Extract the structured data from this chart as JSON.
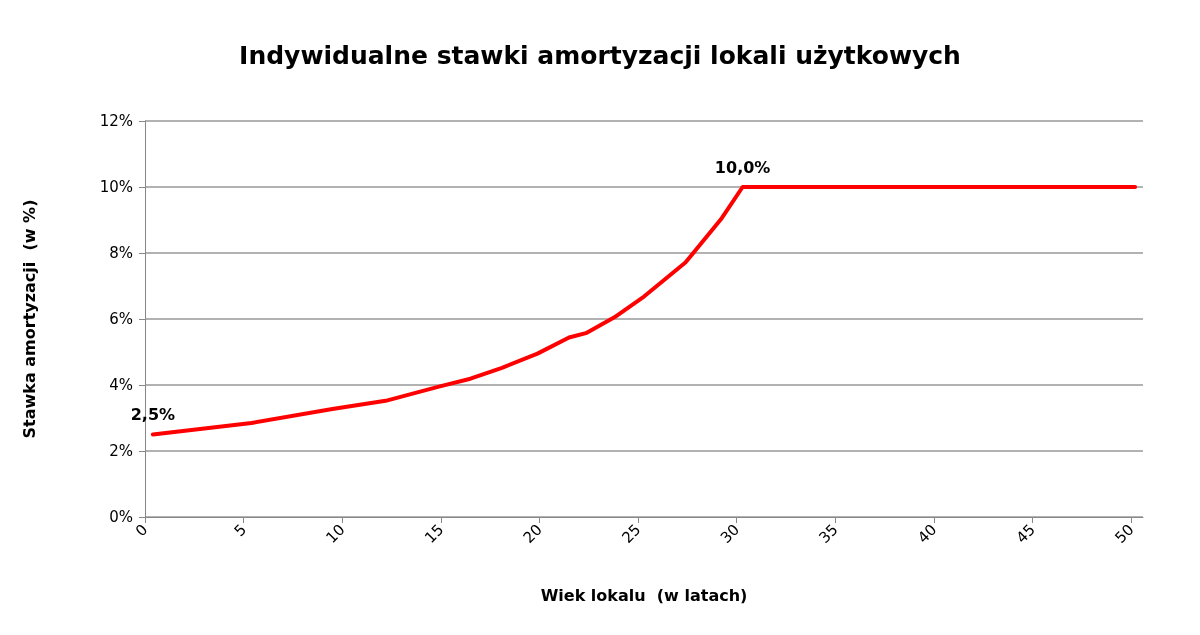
{
  "chart_data": {
    "type": "line",
    "title": "Indywidualne stawki amortyzacji lokali użytkowych",
    "xlabel": "Wiek lokalu  (w latach)",
    "ylabel": "Stawka amortyzacji  (w %)",
    "x": [
      0.4,
      5.4,
      9.5,
      12.2,
      14.9,
      16.5,
      18.1,
      19.9,
      21.5,
      22.4,
      23.8,
      25.3,
      27.4,
      29.2,
      30.3,
      50.2
    ],
    "series": [
      {
        "color": "#ff0000",
        "values": [
          2.5,
          2.85,
          3.27,
          3.52,
          3.95,
          4.19,
          4.52,
          4.95,
          5.44,
          5.58,
          6.05,
          6.68,
          7.71,
          9.02,
          10,
          10
        ]
      }
    ],
    "xlim": [
      0,
      50.6
    ],
    "xticks": [
      0,
      5,
      10,
      15,
      20,
      25,
      30,
      35,
      40,
      45,
      50
    ],
    "ylim": [
      0,
      12
    ],
    "yticks": [
      {
        "value": 0,
        "label": "0%"
      },
      {
        "value": 2,
        "label": "2%"
      },
      {
        "value": 4,
        "label": "4%"
      },
      {
        "value": 6,
        "label": "6%"
      },
      {
        "value": 8,
        "label": "8%"
      },
      {
        "value": 10,
        "label": "10%"
      },
      {
        "value": 12,
        "label": "12%"
      }
    ],
    "annotations": [
      {
        "text": "2,5%",
        "x": 0.4,
        "y": 2.5
      },
      {
        "text": "10,0%",
        "x": 30.3,
        "y": 10
      }
    ],
    "grid": "y",
    "marker": "none",
    "line_style": "solid"
  }
}
